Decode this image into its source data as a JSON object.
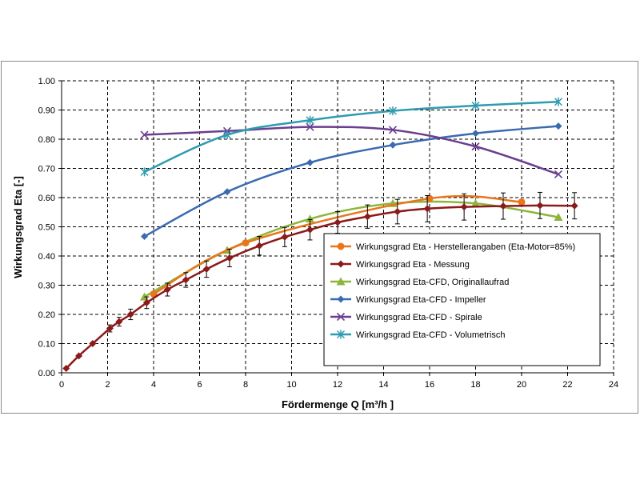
{
  "chart_data": {
    "type": "line",
    "title": "",
    "xlabel": "Fördermenge Q [m³/h ]",
    "ylabel": "Wirkungsgrad Eta [-]",
    "xlim": [
      0,
      24
    ],
    "ylim": [
      0,
      1
    ],
    "x_ticks": [
      0,
      2,
      4,
      6,
      8,
      10,
      12,
      14,
      16,
      18,
      20,
      22,
      24
    ],
    "x_tick_labels": [
      "0",
      "2",
      "4",
      "6",
      "8",
      "10",
      "12",
      "14",
      "16",
      "18",
      "20",
      "22",
      "24"
    ],
    "y_ticks": [
      0,
      0.1,
      0.2,
      0.3,
      0.4,
      0.5,
      0.6,
      0.7,
      0.8,
      0.9,
      1.0
    ],
    "y_tick_labels": [
      "0.00",
      "0.10",
      "0.20",
      "0.30",
      "0.40",
      "0.50",
      "0.60",
      "0.70",
      "0.80",
      "0.90",
      "1.00"
    ],
    "grid": true,
    "legend_position": "center-right",
    "series": [
      {
        "name": "Wirkungsgrad Eta - Herstellerangaben (Eta-Motor=85%)",
        "color": "#e8761a",
        "marker": "circle",
        "x": [
          4,
          8,
          16,
          20
        ],
        "y": [
          0.27,
          0.445,
          0.597,
          0.585
        ]
      },
      {
        "name": "Wirkungsgrad Eta - Messung",
        "color": "#8b1a1a",
        "marker": "diamond",
        "x": [
          0.2,
          0.75,
          1.35,
          2.1,
          2.5,
          3.0,
          3.7,
          4.6,
          5.4,
          6.3,
          7.3,
          8.6,
          9.7,
          10.8,
          12.0,
          13.3,
          14.6,
          15.9,
          17.5,
          19.2,
          20.8,
          22.3
        ],
        "y": [
          0.015,
          0.058,
          0.1,
          0.152,
          0.175,
          0.2,
          0.24,
          0.285,
          0.318,
          0.355,
          0.393,
          0.435,
          0.465,
          0.49,
          0.515,
          0.535,
          0.552,
          0.562,
          0.568,
          0.571,
          0.573,
          0.572
        ],
        "error": [
          0,
          0,
          0,
          0.012,
          0.015,
          0.018,
          0.02,
          0.022,
          0.025,
          0.028,
          0.03,
          0.032,
          0.033,
          0.035,
          0.037,
          0.04,
          0.042,
          0.045,
          0.045,
          0.045,
          0.045,
          0.045
        ]
      },
      {
        "name": "Wirkungsgrad Eta-CFD, Originallaufrad",
        "color": "#8db53c",
        "marker": "triangle",
        "x": [
          3.6,
          7.2,
          10.8,
          14.4,
          18.0,
          21.6
        ],
        "y": [
          0.26,
          0.42,
          0.527,
          0.58,
          0.58,
          0.533
        ]
      },
      {
        "name": "Wirkungsgrad Eta-CFD - Impeller",
        "color": "#3a6bb0",
        "marker": "diamond",
        "x": [
          3.6,
          7.2,
          10.8,
          14.4,
          18.0,
          21.6
        ],
        "y": [
          0.467,
          0.62,
          0.72,
          0.78,
          0.82,
          0.845
        ]
      },
      {
        "name": "Wirkungsgrad Eta-CFD - Spirale",
        "color": "#6b3f8f",
        "marker": "x",
        "x": [
          3.6,
          7.2,
          10.8,
          14.4,
          18.0,
          21.6
        ],
        "y": [
          0.815,
          0.828,
          0.842,
          0.832,
          0.775,
          0.68
        ]
      },
      {
        "name": "Wirkungsgrad Eta-CFD - Volumetrisch",
        "color": "#2e9bb0",
        "marker": "star",
        "x": [
          3.6,
          7.2,
          10.8,
          14.4,
          18.0,
          21.6
        ],
        "y": [
          0.688,
          0.815,
          0.865,
          0.897,
          0.915,
          0.928
        ]
      }
    ]
  }
}
